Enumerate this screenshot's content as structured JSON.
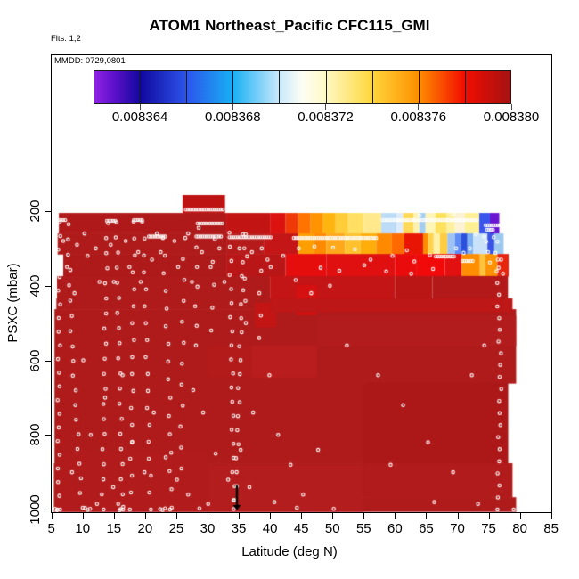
{
  "header": {
    "flights_label": "Flts: 1,2",
    "mmdd_label": "MMDD: 0729,0801"
  },
  "chart_data": {
    "type": "heatmap",
    "title": "ATOM1 Northeast_Pacific CFC115_GMI",
    "xlabel": "Latitude (deg N)",
    "ylabel": "PSXC (mbar)",
    "xlim": [
      5,
      85
    ],
    "ylim_reversed": [
      1005,
      155
    ],
    "grid": false,
    "x_ticks": [
      5,
      10,
      15,
      20,
      25,
      30,
      35,
      40,
      45,
      50,
      55,
      60,
      65,
      70,
      75,
      80,
      85
    ],
    "y_ticks": [
      200,
      400,
      600,
      800,
      1000
    ],
    "colorbar": {
      "min": 0.008362,
      "max": 0.00838,
      "cells": 9,
      "ticks": [
        {
          "label": "0.008364",
          "value": 0.008364
        },
        {
          "label": "0.008368",
          "value": 0.008368
        },
        {
          "label": "0.008372",
          "value": 0.008372
        },
        {
          "label": "0.008376",
          "value": 0.008376
        },
        {
          "label": "0.008380",
          "value": 0.00838
        }
      ],
      "gradient_stops": [
        [
          "0%",
          "#8F22E4"
        ],
        [
          "5%",
          "#5A10C8"
        ],
        [
          "11.1%",
          "#10089E"
        ],
        [
          "22.2%",
          "#2C55EC"
        ],
        [
          "33.3%",
          "#18B0F4"
        ],
        [
          "44.4%",
          "#C9E8FB"
        ],
        [
          "50%",
          "#FDFEF4"
        ],
        [
          "55.6%",
          "#FEF9C4"
        ],
        [
          "66.7%",
          "#FFD73C"
        ],
        [
          "77.8%",
          "#FF9000"
        ],
        [
          "88.9%",
          "#F20D00"
        ],
        [
          "100%",
          "#A51212"
        ]
      ]
    },
    "field": {
      "base_color": "#AF1B1B",
      "bump": {
        "lat0": 26.0,
        "lat1": 32.8,
        "p0": 157,
        "p1": 205,
        "color": "#BE1313"
      },
      "rows": [
        {
          "p0": 205,
          "p1": 260,
          "segs": [
            [
              6.2,
              33,
              "#B01919"
            ],
            [
              33,
              40,
              "#C31414"
            ],
            [
              40,
              42.5,
              "#DC1210"
            ],
            [
              42.5,
              44.5,
              "#EF3A07"
            ],
            [
              44.5,
              46.5,
              "#FF7300"
            ],
            [
              46.5,
              48.5,
              "#FF9400"
            ],
            [
              48.5,
              50.5,
              "#FFB510"
            ],
            [
              50.5,
              52.5,
              "#FFCC3A"
            ],
            [
              52.5,
              55,
              "#FFE062"
            ],
            [
              55,
              57.8,
              "#FFE98C"
            ],
            [
              57.8,
              60.3,
              "#BCDCF8"
            ],
            [
              60.3,
              61.3,
              "#DDEBFA"
            ],
            [
              61.3,
              63,
              "#FFD957"
            ],
            [
              63,
              63.9,
              "#FFF2AC"
            ],
            [
              63.9,
              64.9,
              "#A5CDF2"
            ],
            [
              64.9,
              66.5,
              "#FFF5B6"
            ],
            [
              66.5,
              68.3,
              "#FFE15E"
            ],
            [
              68.3,
              69.6,
              "#FFF0A0"
            ],
            [
              69.6,
              71.2,
              "#FBF3D4"
            ],
            [
              71.2,
              73.5,
              "#FFEF95"
            ],
            [
              73.5,
              75.2,
              "#3A55EC"
            ],
            [
              75.2,
              76.7,
              "#6A15D2"
            ]
          ]
        },
        {
          "p0": 260,
          "p1": 315,
          "segs": [
            [
              6.0,
              33,
              "#AF1A1A"
            ],
            [
              33,
              39,
              "#B61B1B"
            ],
            [
              39,
              44.5,
              "#C41616"
            ],
            [
              44.5,
              47,
              "#FF9E00"
            ],
            [
              47,
              49,
              "#FF8A00"
            ],
            [
              49,
              52,
              "#FFA81C"
            ],
            [
              52,
              54.5,
              "#FFC22E"
            ],
            [
              54.5,
              57,
              "#FFAD0A"
            ],
            [
              57,
              59.5,
              "#FF8A00"
            ],
            [
              59.5,
              61.5,
              "#FF6A00"
            ],
            [
              61.5,
              64.5,
              "#E91504"
            ],
            [
              64.5,
              65.3,
              "#FF8C00"
            ],
            [
              65.3,
              66.2,
              "#FFD34E"
            ],
            [
              66.2,
              67.2,
              "#FFF1A8"
            ],
            [
              67.2,
              68.4,
              "#FFCC42"
            ],
            [
              68.4,
              69.6,
              "#9CC3F4"
            ],
            [
              69.6,
              70.6,
              "#5E8CF6"
            ],
            [
              70.6,
              71.6,
              "#2C50DC"
            ],
            [
              71.6,
              72.5,
              "#7FB2F2"
            ],
            [
              72.5,
              74.8,
              "#C9E2F9"
            ],
            [
              74.8,
              75.9,
              "#3A55E4"
            ],
            [
              75.9,
              77.4,
              "#9CC8F0"
            ]
          ]
        },
        {
          "p0": 315,
          "p1": 374,
          "segs": [
            [
              6.9,
              33,
              "#AE1919"
            ],
            [
              33,
              42.5,
              "#B91717"
            ],
            [
              42.5,
              49,
              "#E60D0D"
            ],
            [
              49,
              60,
              "#E01010"
            ],
            [
              60,
              63.5,
              "#EA0C0C"
            ],
            [
              63.5,
              68,
              "#F20A0A"
            ],
            [
              68,
              70.7,
              "#E21010"
            ],
            [
              70.7,
              73.6,
              "#FF8E00"
            ],
            [
              73.6,
              74.5,
              "#FFC23C"
            ],
            [
              74.5,
              76.4,
              "#FF9200"
            ],
            [
              76.4,
              78.2,
              "#E8250E"
            ]
          ]
        },
        {
          "p0": 374,
          "p1": 434,
          "segs": [
            [
              5.9,
              40,
              "#AF1A1A"
            ],
            [
              40,
              60,
              "#C31515"
            ],
            [
              60,
              66,
              "#BA1616"
            ],
            [
              66,
              78.1,
              "#B31919"
            ]
          ]
        }
      ],
      "base_rows": [
        [
          5.8,
          78.8,
          434,
          463
        ],
        [
          5.5,
          79.4,
          463,
          661
        ],
        [
          5.5,
          78.1,
          661,
          876
        ],
        [
          5.4,
          78.8,
          876,
          967
        ],
        [
          5.4,
          79.4,
          967,
          1005
        ]
      ],
      "patches": [
        [
          44.2,
          47.5,
          398,
          477,
          "#D51010"
        ],
        [
          37.6,
          41.0,
          446,
          510,
          "#C41515"
        ],
        [
          40,
          78.8,
          434,
          470,
          "#BE1717"
        ],
        [
          37,
          47.5,
          560,
          645,
          "#BA1D1D"
        ],
        [
          30,
          37,
          560,
          645,
          "#B31B1B"
        ],
        [
          55,
          78.1,
          661,
          876,
          "#AC1818"
        ],
        [
          55,
          78.8,
          876,
          967,
          "#B21B1B"
        ],
        [
          30,
          55,
          880,
          1005,
          "#B41D1D"
        ],
        [
          5.8,
          30,
          840,
          1005,
          "#B11B1B"
        ],
        [
          47.5,
          79.4,
          480,
          560,
          "#B21C1C"
        ]
      ]
    },
    "tracks": {
      "chains": [
        [
          5.9,
          7.4,
          224
        ],
        [
          13.9,
          15.4,
          226
        ],
        [
          18.2,
          19.7,
          224
        ],
        [
          26.5,
          32.6,
          196
        ],
        [
          28.4,
          32.4,
          233
        ],
        [
          20.6,
          23.4,
          268
        ],
        [
          28.2,
          32.3,
          268
        ],
        [
          33.5,
          40.3,
          270
        ],
        [
          43.8,
          57.0,
          272
        ],
        [
          58.0,
          73.3,
          224
        ],
        [
          74.5,
          77.2,
          238
        ],
        [
          74.7,
          75.7,
          250
        ],
        [
          66.5,
          69.7,
          322
        ],
        [
          70.8,
          72.6,
          334
        ]
      ],
      "polylines": [
        {
          "pts": [
            [
              6.3,
              230
            ],
            [
              6.1,
              1000
            ]
          ],
          "n": 22
        },
        {
          "pts": [
            [
              7.6,
              235
            ],
            [
              8.3,
              560
            ],
            [
              9.9,
              995
            ]
          ],
          "n": 20
        },
        {
          "pts": [
            [
              13.2,
              1000
            ],
            [
              13.9,
              232
            ]
          ],
          "n": 20
        },
        {
          "pts": [
            [
              15.4,
              230
            ],
            [
              16.4,
              1000
            ]
          ],
          "n": 20
        },
        {
          "pts": [
            [
              17.7,
              1000
            ],
            [
              18.3,
              228
            ]
          ],
          "n": 18
        },
        {
          "pts": [
            [
              19.7,
              228
            ],
            [
              20.9,
              1000
            ]
          ],
          "n": 18
        },
        {
          "pts": [
            [
              22.9,
              272
            ],
            [
              23.8,
              640
            ],
            [
              24.2,
              995
            ]
          ],
          "n": 16
        },
        {
          "pts": [
            [
              25.7,
              890
            ],
            [
              26.3,
              272
            ]
          ],
          "n": 12
        },
        {
          "pts": [
            [
              28.4,
              245
            ],
            [
              28.1,
              560
            ]
          ],
          "n": 7
        },
        {
          "pts": [
            [
              31.1,
              275
            ],
            [
              30.7,
              520
            ]
          ],
          "n": 5
        },
        {
          "pts": [
            [
              33.6,
              258
            ],
            [
              34.2,
              975
            ]
          ],
          "n": 20
        },
        {
          "pts": [
            [
              34.5,
              975
            ],
            [
              35.8,
              262
            ]
          ],
          "n": 20
        },
        {
          "pts": [
            [
              36.2,
              262
            ],
            [
              36.0,
              500
            ]
          ],
          "n": 5
        },
        {
          "pts": [
            [
              38.6,
              300
            ],
            [
              38.3,
              540
            ]
          ],
          "n": 5
        },
        {
          "pts": [
            [
              76.3,
              330
            ],
            [
              76.9,
              620
            ],
            [
              76.5,
              1000
            ]
          ],
          "n": 22
        }
      ],
      "scatter": [
        [
          6.9,
          280
        ],
        [
          7.5,
          350
        ],
        [
          8.7,
          420
        ],
        [
          9.1,
          290
        ],
        [
          10.3,
          260
        ],
        [
          10.8,
          320
        ],
        [
          12.1,
          300
        ],
        [
          12.7,
          390
        ],
        [
          14.5,
          290
        ],
        [
          15.0,
          390
        ],
        [
          16.9,
          280
        ],
        [
          17.5,
          350
        ],
        [
          18.9,
          310
        ],
        [
          19.3,
          390
        ],
        [
          21.1,
          330
        ],
        [
          21.9,
          260
        ],
        [
          22.5,
          310
        ],
        [
          24.7,
          280
        ],
        [
          25.3,
          350
        ],
        [
          26.9,
          260
        ],
        [
          27.5,
          390
        ],
        [
          29.1,
          310
        ],
        [
          30.5,
          350
        ],
        [
          31.9,
          300
        ],
        [
          32.7,
          390
        ],
        [
          8.3,
          900
        ],
        [
          10.1,
          600
        ],
        [
          11.3,
          800
        ],
        [
          12.3,
          985
        ],
        [
          13.6,
          700
        ],
        [
          14.9,
          940
        ],
        [
          16.4,
          640
        ],
        [
          17.9,
          820
        ],
        [
          19.9,
          900
        ],
        [
          21.4,
          740
        ],
        [
          23.3,
          860
        ],
        [
          25.1,
          920
        ],
        [
          26.9,
          960
        ],
        [
          27.7,
          680
        ],
        [
          29.3,
          740
        ],
        [
          30.1,
          985
        ],
        [
          31.3,
          850
        ],
        [
          33.3,
          920
        ],
        [
          35.3,
          840
        ],
        [
          36.7,
          940
        ],
        [
          37.3,
          740
        ],
        [
          39.9,
          640
        ],
        [
          41.3,
          800
        ],
        [
          43.3,
          880
        ],
        [
          45.3,
          960
        ],
        [
          47.7,
          840
        ],
        [
          40.7,
          980
        ],
        [
          35.1,
          300
        ],
        [
          37.1,
          310
        ],
        [
          39.6,
          330
        ],
        [
          40.1,
          350
        ],
        [
          42.1,
          320
        ],
        [
          44.1,
          385
        ],
        [
          44.6,
          300
        ],
        [
          46.6,
          420
        ],
        [
          47.1,
          295
        ],
        [
          49.6,
          400
        ],
        [
          50.1,
          298
        ],
        [
          53.6,
          302
        ],
        [
          56.1,
          330
        ],
        [
          59.6,
          320
        ],
        [
          61.9,
          305
        ],
        [
          63.1,
          335
        ],
        [
          65.6,
          318
        ],
        [
          48.1,
          352
        ],
        [
          51.1,
          360
        ],
        [
          55.1,
          345
        ],
        [
          58.6,
          362
        ],
        [
          62.6,
          368
        ],
        [
          66.1,
          355
        ],
        [
          63.9,
          212
        ],
        [
          69.3,
          208
        ],
        [
          73.0,
          262
        ],
        [
          74.3,
          268
        ],
        [
          75.8,
          270
        ],
        [
          74.6,
          282
        ],
        [
          76.4,
          282
        ],
        [
          72.0,
          300
        ],
        [
          74.9,
          310
        ],
        [
          76.1,
          312
        ],
        [
          77.0,
          330
        ],
        [
          75.2,
          338
        ],
        [
          76.6,
          352
        ],
        [
          77.3,
          368
        ],
        [
          69.8,
          300
        ],
        [
          71.0,
          312
        ],
        [
          52.3,
          560
        ],
        [
          57.3,
          640
        ],
        [
          61.3,
          720
        ],
        [
          65.3,
          820
        ],
        [
          69.3,
          900
        ],
        [
          66.3,
          980
        ],
        [
          72.3,
          640
        ],
        [
          74.3,
          560
        ],
        [
          73.3,
          985
        ],
        [
          59.3,
          880
        ],
        [
          5.6,
          998
        ],
        [
          5.9,
          1002
        ],
        [
          6.4,
          1000
        ],
        [
          10.4,
          996
        ],
        [
          10.8,
          1001
        ],
        [
          11.2,
          998
        ],
        [
          15.7,
          985
        ],
        [
          16.1,
          999
        ],
        [
          16.5,
          993
        ],
        [
          15.9,
          1002
        ],
        [
          22.4,
          999
        ],
        [
          22.8,
          1001
        ],
        [
          23.2,
          997
        ],
        [
          24.0,
          1000
        ],
        [
          28.7,
          997
        ],
        [
          34.2,
          999
        ],
        [
          79.0,
          1000
        ],
        [
          44.3,
          995
        ],
        [
          50.2,
          998
        ]
      ]
    },
    "arrow": {
      "lat": 34.7,
      "p_from": 935,
      "p_to": 1002,
      "color": "#000000"
    }
  }
}
